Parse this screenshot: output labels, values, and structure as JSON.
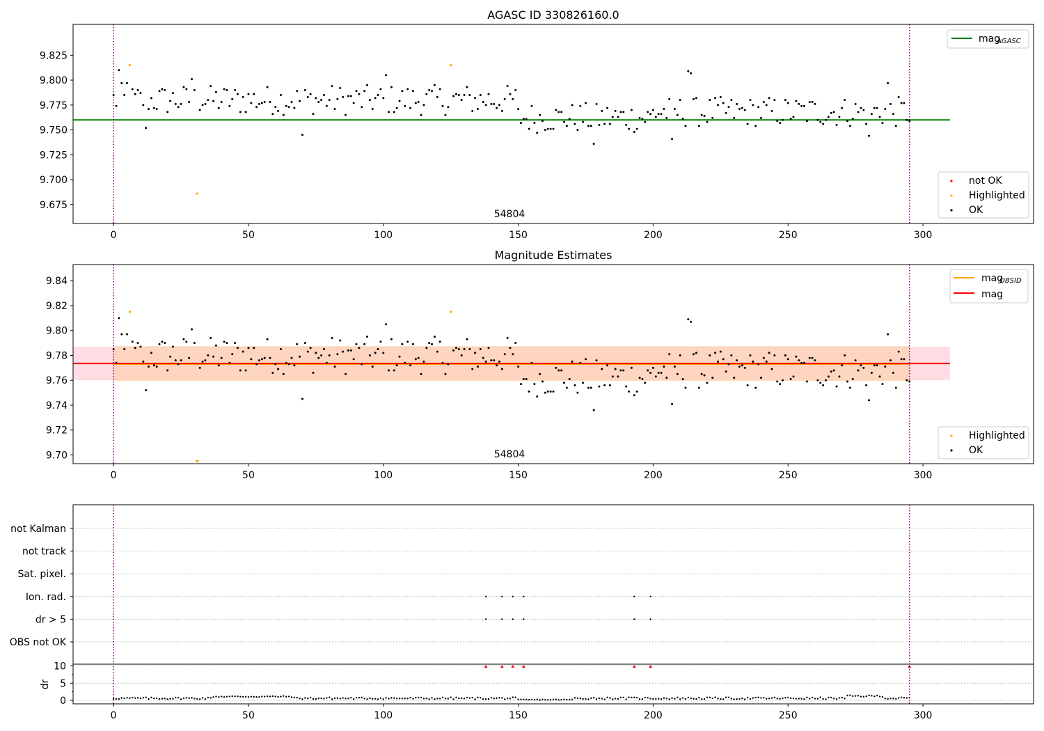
{
  "chart_data": [
    {
      "type": "scatter",
      "title": "AGASC ID 330826160.0",
      "xlim": [
        -15,
        341
      ],
      "ylim": [
        9.656,
        9.856
      ],
      "xticks": [
        0,
        50,
        100,
        150,
        200,
        250,
        300
      ],
      "yticks": [
        9.675,
        9.7,
        9.725,
        9.75,
        9.775,
        9.8,
        9.825
      ],
      "ytick_labels": [
        "9.675",
        "9.700",
        "9.725",
        "9.750",
        "9.775",
        "9.800",
        "9.825"
      ],
      "vlines": [
        0,
        295
      ],
      "hline": {
        "name": "mag_AGASC",
        "value": 9.76,
        "x_range": [
          -15,
          310
        ],
        "color": "#008000"
      },
      "annotation": {
        "text": "54804",
        "x": 147
      },
      "legend_lines": [
        {
          "label": "mag",
          "sub": "AGASC",
          "color": "#008000"
        }
      ],
      "legend_points": [
        {
          "label": "not OK",
          "color": "#ff0000"
        },
        {
          "label": "Highlighted",
          "color": "#ffa500"
        },
        {
          "label": "OK",
          "color": "#000000"
        }
      ],
      "highlighted": [
        [
          6,
          9.815
        ],
        [
          31,
          9.686
        ],
        [
          125,
          9.815
        ]
      ]
    },
    {
      "type": "scatter",
      "title": "Magnitude Estimates",
      "xlim": [
        -15,
        341
      ],
      "ylim": [
        9.693,
        9.853
      ],
      "xticks": [
        0,
        50,
        100,
        150,
        200,
        250,
        300
      ],
      "yticks": [
        9.7,
        9.72,
        9.74,
        9.76,
        9.78,
        9.8,
        9.82,
        9.84
      ],
      "ytick_labels": [
        "9.70",
        "9.72",
        "9.74",
        "9.76",
        "9.78",
        "9.80",
        "9.82",
        "9.84"
      ],
      "vlines": [
        0,
        295
      ],
      "band_outer": {
        "ymin": 9.76,
        "ymax": 9.787,
        "x_range": [
          -15,
          310
        ],
        "color": "#ffdde3"
      },
      "band_inner": {
        "ymin": 9.76,
        "ymax": 9.787,
        "x_range": [
          0,
          295
        ],
        "color": "#fdd5c0"
      },
      "hline_obsid": {
        "value": 9.773,
        "x_range": [
          0,
          295
        ],
        "color": "#ffa500"
      },
      "hline_mag": {
        "value": 9.7735,
        "x_range": [
          -15,
          310
        ],
        "color": "#ff0000"
      },
      "annotation": {
        "text": "54804",
        "x": 147
      },
      "legend_lines": [
        {
          "label": "mag",
          "sub": "OBSID",
          "color": "#ffa500"
        },
        {
          "label": "mag",
          "sub": "",
          "color": "#ff0000"
        }
      ],
      "legend_points": [
        {
          "label": "Highlighted",
          "color": "#ffa500"
        },
        {
          "label": "OK",
          "color": "#000000"
        }
      ],
      "highlighted": [
        [
          6,
          9.815
        ],
        [
          125,
          9.815
        ]
      ],
      "clipped_marker": {
        "x": 31,
        "color": "#ffa500"
      }
    },
    {
      "type": "scatter",
      "xlim": [
        -15,
        341
      ],
      "flags": [
        "not Kalman",
        "not track",
        "Sat. pixel.",
        "Ion. rad.",
        "dr > 5",
        "OBS not OK"
      ],
      "flag_points": {
        "Ion. rad.": [
          138,
          144,
          148,
          152,
          193,
          199
        ],
        "dr > 5": [
          138,
          144,
          148,
          152,
          193,
          199
        ]
      },
      "dr_ylabel": "dr",
      "dr_ylim": [
        -1,
        10.5
      ],
      "dr_yticks": [
        0,
        5,
        10
      ],
      "dr_clipped": [
        138,
        144,
        148,
        152,
        193,
        199,
        295
      ],
      "xticks": [
        0,
        50,
        100,
        150,
        200,
        250,
        300
      ],
      "vlines": [
        0,
        295
      ]
    }
  ]
}
